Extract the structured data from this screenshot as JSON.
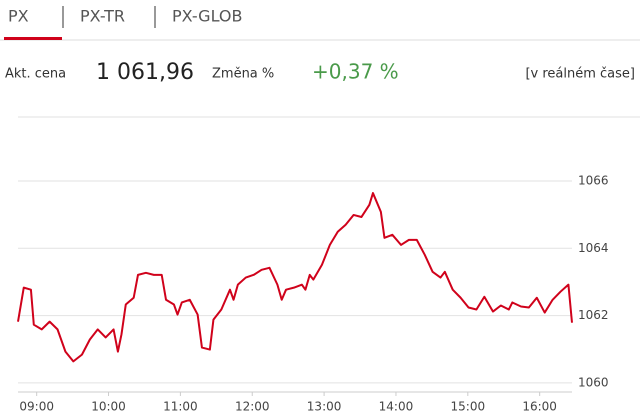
{
  "tabs": [
    "PX",
    "PX-TR",
    "PX-GLOB"
  ],
  "quote": {
    "price_label": "Akt. cena",
    "price": "1 061,96",
    "change_label": "Změna %",
    "change": "+0,37 %",
    "mode": "[v reálném čase]"
  },
  "chart_data": {
    "type": "line",
    "color": "#d0021b",
    "grid": true,
    "x": [
      8.74,
      8.82,
      8.92,
      8.96,
      9.07,
      9.18,
      9.29,
      9.4,
      9.51,
      9.63,
      9.74,
      9.85,
      9.96,
      10.07,
      10.13,
      10.18,
      10.24,
      10.35,
      10.41,
      10.52,
      10.63,
      10.74,
      10.8,
      10.91,
      10.96,
      11.02,
      11.13,
      11.24,
      11.3,
      11.41,
      11.46,
      11.57,
      11.69,
      11.74,
      11.8,
      11.91,
      12.02,
      12.13,
      12.24,
      12.35,
      12.41,
      12.47,
      12.58,
      12.69,
      12.74,
      12.8,
      12.85,
      12.97,
      13.08,
      13.19,
      13.3,
      13.41,
      13.52,
      13.63,
      13.68,
      13.79,
      13.84,
      13.95,
      14.07,
      14.18,
      14.29,
      14.4,
      14.51,
      14.62,
      14.68,
      14.79,
      14.9,
      15.01,
      15.12,
      15.23,
      15.35,
      15.46,
      15.57,
      15.62,
      15.74,
      15.85,
      15.96,
      16.07,
      16.18,
      16.29,
      16.4,
      16.45
    ],
    "values": [
      1061.82,
      1062.83,
      1062.77,
      1061.73,
      1061.59,
      1061.82,
      1061.59,
      1060.93,
      1060.64,
      1060.84,
      1061.29,
      1061.59,
      1061.35,
      1061.59,
      1060.93,
      1061.44,
      1062.33,
      1062.53,
      1063.21,
      1063.27,
      1063.21,
      1063.21,
      1062.47,
      1062.33,
      1062.03,
      1062.39,
      1062.47,
      1062.03,
      1061.05,
      1060.99,
      1061.88,
      1062.18,
      1062.77,
      1062.47,
      1062.92,
      1063.13,
      1063.21,
      1063.36,
      1063.42,
      1062.92,
      1062.47,
      1062.77,
      1062.83,
      1062.92,
      1062.77,
      1063.21,
      1063.07,
      1063.51,
      1064.1,
      1064.49,
      1064.7,
      1064.99,
      1064.93,
      1065.29,
      1065.64,
      1065.08,
      1064.31,
      1064.4,
      1064.1,
      1064.25,
      1064.25,
      1063.81,
      1063.3,
      1063.13,
      1063.3,
      1062.77,
      1062.53,
      1062.24,
      1062.18,
      1062.56,
      1062.12,
      1062.3,
      1062.18,
      1062.39,
      1062.27,
      1062.24,
      1062.53,
      1062.09,
      1062.47,
      1062.71,
      1062.92,
      1061.79
    ],
    "xlim": [
      8.74,
      16.45
    ],
    "xticks": [
      {
        "value": 9,
        "label": "09:00"
      },
      {
        "value": 10,
        "label": "10:00"
      },
      {
        "value": 11,
        "label": "11:00"
      },
      {
        "value": 12,
        "label": "12:00"
      },
      {
        "value": 13,
        "label": "13:00"
      },
      {
        "value": 14,
        "label": "14:00"
      },
      {
        "value": 15,
        "label": "15:00"
      },
      {
        "value": 16,
        "label": "16:00"
      }
    ],
    "ylim": [
      1059.73,
      1067.9
    ],
    "yticks": [
      1060,
      1062,
      1064,
      1066
    ]
  }
}
